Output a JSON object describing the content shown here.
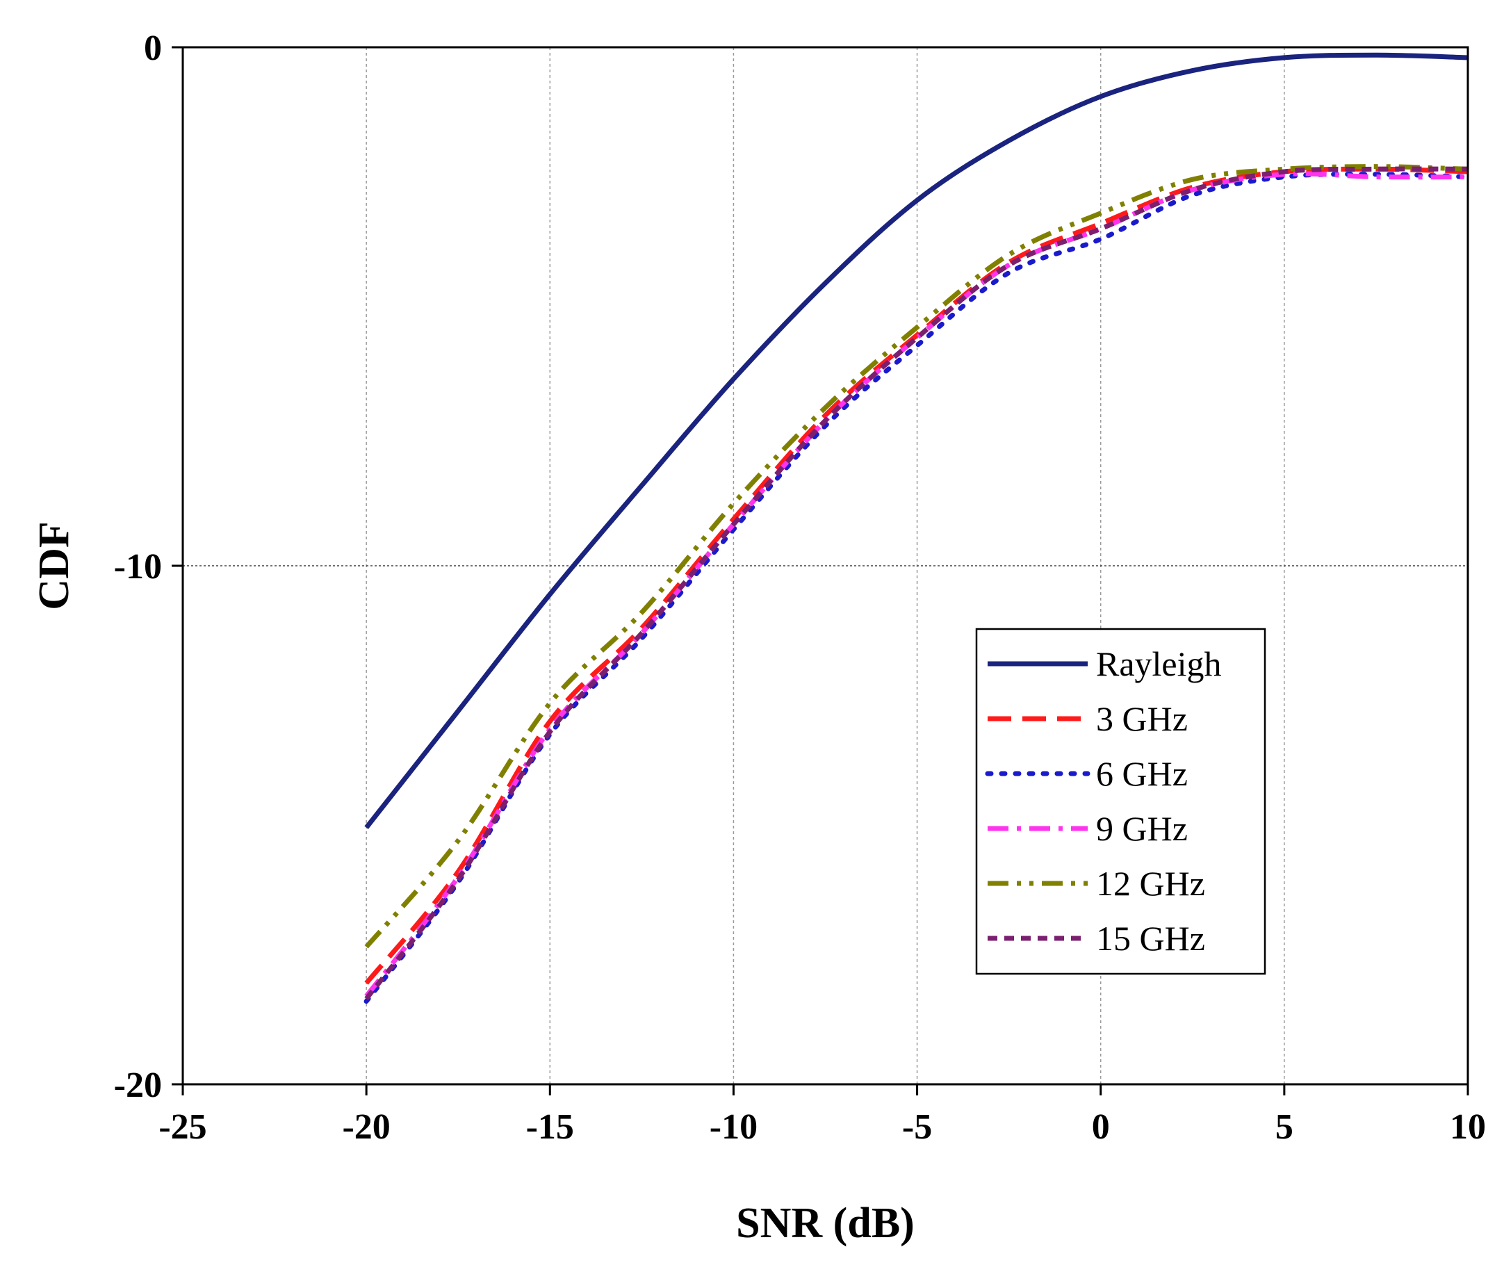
{
  "chart_data": {
    "type": "line",
    "title": "",
    "xlabel": "SNR (dB)",
    "ylabel": "CDF",
    "xlim": [
      -25,
      10
    ],
    "ylim": [
      -20,
      0
    ],
    "xticks": [
      -25,
      -20,
      -15,
      -10,
      -5,
      0,
      5,
      10
    ],
    "xtick_labels": [
      "-25",
      "-20",
      "-15",
      "-10",
      "-5",
      "0",
      "5",
      "10"
    ],
    "yticks": [
      -20,
      -10,
      0
    ],
    "ytick_labels": [
      "-20",
      "-10",
      "0"
    ],
    "grid": true,
    "legend_position": "lower-right",
    "x": [
      -20,
      -17.5,
      -15,
      -12.5,
      -10,
      -7.5,
      -5,
      -2.5,
      0,
      2.5,
      5,
      7.5,
      10
    ],
    "series": [
      {
        "name": "Rayleigh",
        "color": "#1a237e",
        "dash": "solid",
        "values": [
          -15.05,
          -12.8,
          -10.55,
          -8.45,
          -6.4,
          -4.55,
          -2.95,
          -1.8,
          -0.95,
          -0.45,
          -0.2,
          -0.15,
          -0.2
        ]
      },
      {
        "name": "3 GHz",
        "color": "#ff1a1a",
        "dash": "dashed",
        "values": [
          -18.05,
          -15.9,
          -13.0,
          -11.2,
          -9.1,
          -7.1,
          -5.55,
          -4.15,
          -3.4,
          -2.7,
          -2.4,
          -2.35,
          -2.4
        ]
      },
      {
        "name": "6 GHz",
        "color": "#1a1acc",
        "dash": "dotted",
        "values": [
          -18.4,
          -16.1,
          -13.25,
          -11.4,
          -9.3,
          -7.3,
          -5.75,
          -4.35,
          -3.7,
          -2.85,
          -2.5,
          -2.45,
          -2.5
        ]
      },
      {
        "name": "9 GHz",
        "color": "#ff33ee",
        "dash": "dashdot",
        "values": [
          -18.3,
          -16.0,
          -13.15,
          -11.3,
          -9.2,
          -7.2,
          -5.6,
          -4.2,
          -3.5,
          -2.75,
          -2.45,
          -2.5,
          -2.5
        ]
      },
      {
        "name": "12 GHz",
        "color": "#808000",
        "dash": "dashdotdot",
        "values": [
          -17.35,
          -15.3,
          -12.65,
          -10.9,
          -8.8,
          -6.95,
          -5.4,
          -4.0,
          -3.2,
          -2.55,
          -2.35,
          -2.3,
          -2.35
        ]
      },
      {
        "name": "15 GHz",
        "color": "#7b1f6f",
        "dash": "shortdash",
        "values": [
          -18.35,
          -16.05,
          -13.2,
          -11.3,
          -9.2,
          -7.2,
          -5.6,
          -4.2,
          -3.5,
          -2.75,
          -2.4,
          -2.35,
          -2.35
        ]
      }
    ]
  }
}
